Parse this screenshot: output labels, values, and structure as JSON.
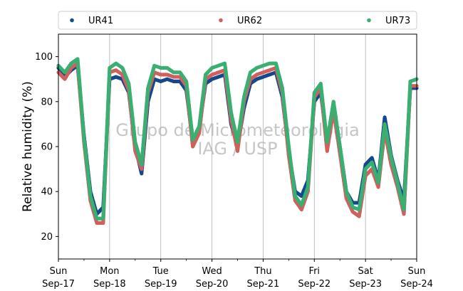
{
  "chart_data": {
    "type": "scatter",
    "title": "",
    "xlabel": "",
    "ylabel": "Relative humidity (%)",
    "ylim": [
      10,
      110
    ],
    "yticks": [
      20,
      40,
      60,
      80,
      100
    ],
    "xlim": [
      "2017-09-17 00:00",
      "2017-09-24 00:00"
    ],
    "xticks": [
      {
        "weekday": "Sun",
        "date": "Sep-17"
      },
      {
        "weekday": "Mon",
        "date": "Sep-18"
      },
      {
        "weekday": "Tue",
        "date": "Sep-19"
      },
      {
        "weekday": "Wed",
        "date": "Sep-20"
      },
      {
        "weekday": "Thu",
        "date": "Sep-21"
      },
      {
        "weekday": "Fri",
        "date": "Sep-22"
      },
      {
        "weekday": "Sat",
        "date": "Sep-23"
      },
      {
        "weekday": "Sun",
        "date": "Sep-24"
      }
    ],
    "x_grid": true,
    "y_grid": false,
    "legend_position": "top",
    "watermark": [
      "Grupo de Micrometeorologia",
      "IAG / USP"
    ],
    "series": [
      {
        "name": "UR41",
        "color": "#15488c",
        "x": [
          "2017-09-17 00:00",
          "2017-09-17 03:00",
          "2017-09-17 06:00",
          "2017-09-17 09:00",
          "2017-09-17 12:00",
          "2017-09-17 15:00",
          "2017-09-17 18:00",
          "2017-09-17 21:00",
          "2017-09-18 00:00",
          "2017-09-18 03:00",
          "2017-09-18 06:00",
          "2017-09-18 09:00",
          "2017-09-18 12:00",
          "2017-09-18 15:00",
          "2017-09-18 18:00",
          "2017-09-18 21:00",
          "2017-09-19 00:00",
          "2017-09-19 03:00",
          "2017-09-19 06:00",
          "2017-09-19 09:00",
          "2017-09-19 12:00",
          "2017-09-19 15:00",
          "2017-09-19 18:00",
          "2017-09-19 21:00",
          "2017-09-20 00:00",
          "2017-09-20 03:00",
          "2017-09-20 06:00",
          "2017-09-20 09:00",
          "2017-09-20 12:00",
          "2017-09-20 15:00",
          "2017-09-20 18:00",
          "2017-09-20 21:00",
          "2017-09-21 00:00",
          "2017-09-21 03:00",
          "2017-09-21 06:00",
          "2017-09-21 09:00",
          "2017-09-21 12:00",
          "2017-09-21 15:00",
          "2017-09-21 18:00",
          "2017-09-21 21:00",
          "2017-09-22 00:00",
          "2017-09-22 03:00",
          "2017-09-22 06:00",
          "2017-09-22 09:00",
          "2017-09-22 12:00",
          "2017-09-22 15:00",
          "2017-09-22 18:00",
          "2017-09-22 21:00",
          "2017-09-23 00:00",
          "2017-09-23 03:00",
          "2017-09-23 06:00",
          "2017-09-23 09:00",
          "2017-09-23 12:00",
          "2017-09-23 15:00",
          "2017-09-23 18:00",
          "2017-09-23 21:00",
          "2017-09-24 00:00"
        ],
        "y": [
          95,
          91,
          94,
          96,
          65,
          40,
          30,
          33,
          90,
          91,
          90,
          84,
          60,
          48,
          80,
          90,
          89,
          90,
          89,
          89,
          85,
          62,
          68,
          88,
          90,
          91,
          92,
          70,
          60,
          77,
          88,
          90,
          91,
          92,
          93,
          82,
          58,
          40,
          38,
          45,
          80,
          84,
          62,
          78,
          60,
          40,
          35,
          35,
          52,
          55,
          45,
          73,
          56,
          45,
          36,
          86,
          86
        ]
      },
      {
        "name": "UR62",
        "color": "#d0605e",
        "x": [
          "2017-09-17 00:00",
          "2017-09-17 03:00",
          "2017-09-17 06:00",
          "2017-09-17 09:00",
          "2017-09-17 12:00",
          "2017-09-17 15:00",
          "2017-09-17 18:00",
          "2017-09-17 21:00",
          "2017-09-18 00:00",
          "2017-09-18 03:00",
          "2017-09-18 06:00",
          "2017-09-18 09:00",
          "2017-09-18 12:00",
          "2017-09-18 15:00",
          "2017-09-18 18:00",
          "2017-09-18 21:00",
          "2017-09-19 00:00",
          "2017-09-19 03:00",
          "2017-09-19 06:00",
          "2017-09-19 09:00",
          "2017-09-19 12:00",
          "2017-09-19 15:00",
          "2017-09-19 18:00",
          "2017-09-19 21:00",
          "2017-09-20 00:00",
          "2017-09-20 03:00",
          "2017-09-20 06:00",
          "2017-09-20 09:00",
          "2017-09-20 12:00",
          "2017-09-20 15:00",
          "2017-09-20 18:00",
          "2017-09-20 21:00",
          "2017-09-21 00:00",
          "2017-09-21 03:00",
          "2017-09-21 06:00",
          "2017-09-21 09:00",
          "2017-09-21 12:00",
          "2017-09-21 15:00",
          "2017-09-21 18:00",
          "2017-09-21 21:00",
          "2017-09-22 00:00",
          "2017-09-22 03:00",
          "2017-09-22 06:00",
          "2017-09-22 09:00",
          "2017-09-22 12:00",
          "2017-09-22 15:00",
          "2017-09-22 18:00",
          "2017-09-22 21:00",
          "2017-09-23 00:00",
          "2017-09-23 03:00",
          "2017-09-23 06:00",
          "2017-09-23 09:00",
          "2017-09-23 12:00",
          "2017-09-23 15:00",
          "2017-09-23 18:00",
          "2017-09-23 21:00",
          "2017-09-24 00:00"
        ],
        "y": [
          93,
          90,
          95,
          97,
          62,
          36,
          26,
          26,
          93,
          94,
          92,
          85,
          58,
          50,
          84,
          93,
          92,
          92,
          91,
          91,
          87,
          60,
          66,
          90,
          92,
          93,
          94,
          72,
          58,
          80,
          90,
          92,
          93,
          94,
          95,
          84,
          56,
          36,
          32,
          40,
          82,
          86,
          58,
          76,
          57,
          37,
          31,
          29,
          47,
          50,
          42,
          67,
          52,
          42,
          30,
          87,
          87
        ]
      },
      {
        "name": "UR73",
        "color": "#3aaf72",
        "x": [
          "2017-09-17 00:00",
          "2017-09-17 03:00",
          "2017-09-17 06:00",
          "2017-09-17 09:00",
          "2017-09-17 12:00",
          "2017-09-17 15:00",
          "2017-09-17 18:00",
          "2017-09-17 21:00",
          "2017-09-18 00:00",
          "2017-09-18 03:00",
          "2017-09-18 06:00",
          "2017-09-18 09:00",
          "2017-09-18 12:00",
          "2017-09-18 15:00",
          "2017-09-18 18:00",
          "2017-09-18 21:00",
          "2017-09-19 00:00",
          "2017-09-19 03:00",
          "2017-09-19 06:00",
          "2017-09-19 09:00",
          "2017-09-19 12:00",
          "2017-09-19 15:00",
          "2017-09-19 18:00",
          "2017-09-19 21:00",
          "2017-09-20 00:00",
          "2017-09-20 03:00",
          "2017-09-20 06:00",
          "2017-09-20 09:00",
          "2017-09-20 12:00",
          "2017-09-20 15:00",
          "2017-09-20 18:00",
          "2017-09-20 21:00",
          "2017-09-21 00:00",
          "2017-09-21 03:00",
          "2017-09-21 06:00",
          "2017-09-21 09:00",
          "2017-09-21 12:00",
          "2017-09-21 15:00",
          "2017-09-21 18:00",
          "2017-09-21 21:00",
          "2017-09-22 00:00",
          "2017-09-22 03:00",
          "2017-09-22 06:00",
          "2017-09-22 09:00",
          "2017-09-22 12:00",
          "2017-09-22 15:00",
          "2017-09-22 18:00",
          "2017-09-22 21:00",
          "2017-09-23 00:00",
          "2017-09-23 03:00",
          "2017-09-23 06:00",
          "2017-09-23 09:00",
          "2017-09-23 12:00",
          "2017-09-23 15:00",
          "2017-09-23 18:00",
          "2017-09-23 21:00",
          "2017-09-24 00:00"
        ],
        "y": [
          96,
          93,
          97,
          99,
          64,
          38,
          28,
          28,
          95,
          97,
          95,
          88,
          62,
          52,
          86,
          96,
          95,
          95,
          93,
          93,
          89,
          63,
          69,
          92,
          95,
          96,
          97,
          75,
          62,
          82,
          93,
          95,
          96,
          97,
          97,
          86,
          60,
          38,
          34,
          42,
          84,
          88,
          62,
          80,
          60,
          40,
          33,
          32,
          50,
          53,
          44,
          70,
          55,
          44,
          32,
          89,
          90
        ]
      }
    ]
  }
}
